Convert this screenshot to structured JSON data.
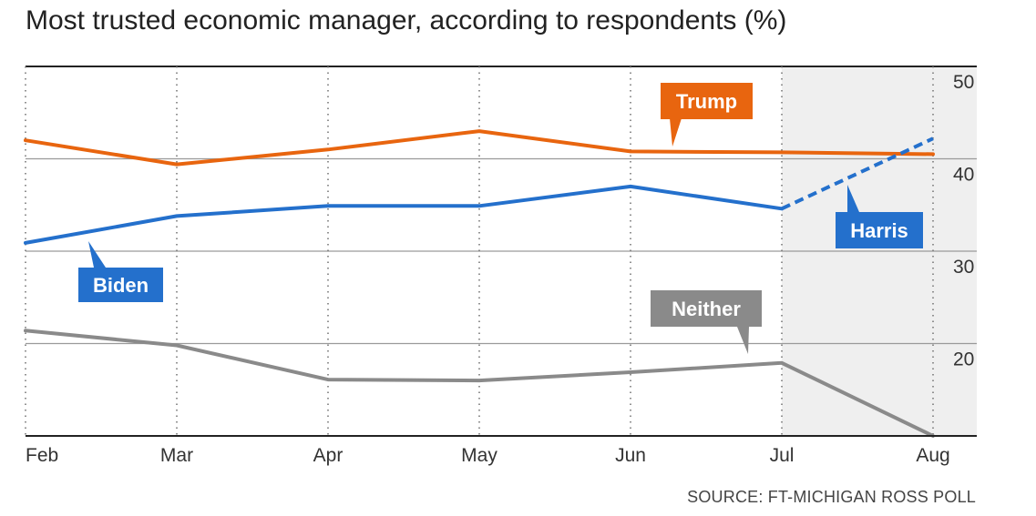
{
  "title": "Most trusted economic manager, according to respondents (%)",
  "source": "SOURCE: FT-MICHIGAN ROSS POLL",
  "colors": {
    "trump": "#E8650F",
    "blue": "#2470CC",
    "neither": "#8A8A8A",
    "shade": "#EFEFEF",
    "grid": "#9A9A9A",
    "axis": "#222222"
  },
  "chart_data": {
    "type": "line",
    "title": "Most trusted economic manager, according to respondents (%)",
    "xlabel": "",
    "ylabel": "",
    "categories": [
      "Feb",
      "Mar",
      "Apr",
      "May",
      "Jun",
      "Jul",
      "Aug"
    ],
    "ylim": [
      10,
      50
    ],
    "yticks": [
      20,
      30,
      40,
      50
    ],
    "grid": "horizontal solid lines, vertical dotted lines at each month",
    "shaded_period": [
      "Jul",
      "Aug"
    ],
    "series": [
      {
        "name": "Trump",
        "color": "#E8650F",
        "values": [
          42,
          39.4,
          41,
          43,
          40.8,
          40.7,
          40.5
        ],
        "style": "solid"
      },
      {
        "name": "Biden",
        "color": "#2470CC",
        "values": [
          30.9,
          33.8,
          34.9,
          34.9,
          37,
          34.6,
          null
        ],
        "style": "solid"
      },
      {
        "name": "Harris",
        "color": "#2470CC",
        "values": [
          null,
          null,
          null,
          null,
          null,
          34.6,
          42.2
        ],
        "style": "dashed"
      },
      {
        "name": "Neither",
        "color": "#8A8A8A",
        "values": [
          21.4,
          19.8,
          16.1,
          16,
          16.9,
          17.9,
          10
        ],
        "style": "solid"
      }
    ],
    "annotations": [
      {
        "label": "Trump",
        "series": "Trump",
        "near": "Jun"
      },
      {
        "label": "Biden",
        "series": "Biden",
        "near": "Feb"
      },
      {
        "label": "Harris",
        "series": "Harris",
        "near": "Aug"
      },
      {
        "label": "Neither",
        "series": "Neither",
        "near": "Jul"
      }
    ]
  }
}
